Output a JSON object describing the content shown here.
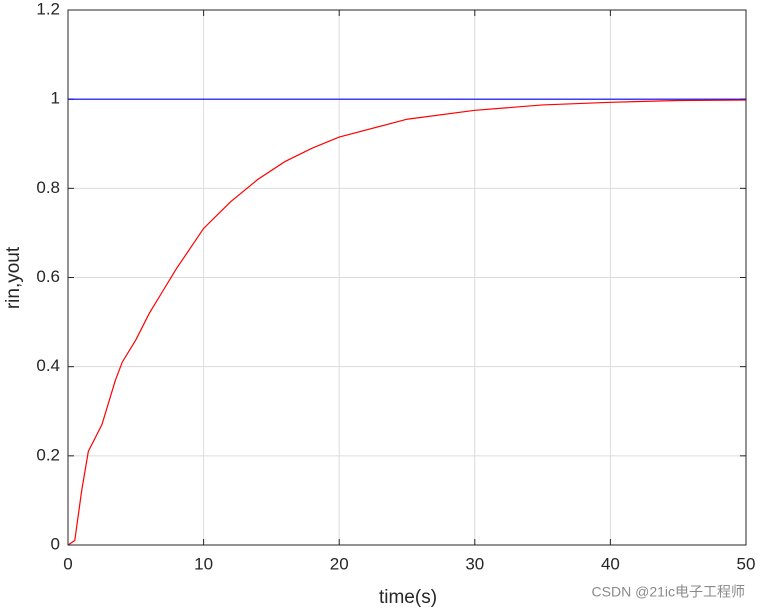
{
  "chart_data": {
    "type": "line",
    "xlabel": "time(s)",
    "ylabel": "rin,yout",
    "x": [
      0,
      0.5,
      1,
      1.5,
      2,
      2.5,
      3,
      3.5,
      4,
      5,
      6,
      7,
      8,
      10,
      12,
      14,
      16,
      18,
      20,
      25,
      30,
      35,
      40,
      45,
      50
    ],
    "series": [
      {
        "color": "#0000ff",
        "values": [
          1,
          1,
          1,
          1,
          1,
          1,
          1,
          1,
          1,
          1,
          1,
          1,
          1,
          1,
          1,
          1,
          1,
          1,
          1,
          1,
          1,
          1,
          1,
          1,
          1
        ]
      },
      {
        "color": "#ff0000",
        "values": [
          0,
          0.01,
          0.12,
          0.21,
          0.24,
          0.27,
          0.32,
          0.37,
          0.41,
          0.46,
          0.52,
          0.57,
          0.62,
          0.71,
          0.77,
          0.82,
          0.86,
          0.89,
          0.915,
          0.955,
          0.975,
          0.987,
          0.993,
          0.997,
          0.998
        ]
      }
    ],
    "xlim": [
      0,
      50
    ],
    "xticks": [
      0,
      10,
      20,
      30,
      40,
      50
    ],
    "ylim": [
      0,
      1.2
    ],
    "yticks": [
      0,
      0.2,
      0.4,
      0.6,
      0.8,
      1,
      1.2
    ],
    "grid": true,
    "watermark": "CSDN @21ic电子工程师"
  }
}
